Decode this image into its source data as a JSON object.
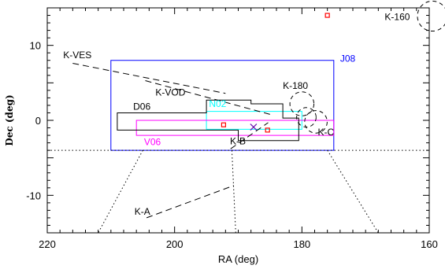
{
  "chart_data": {
    "type": "scatter",
    "title": "",
    "xlabel": "RA (deg)",
    "ylabel": "Dec (deg)",
    "xlim": [
      220,
      160
    ],
    "ylim": [
      -15,
      15
    ],
    "x_ticks": [
      220,
      200,
      180,
      160
    ],
    "x_tick_labels": [
      "220",
      "200",
      "180",
      "160"
    ],
    "y_ticks": [
      10,
      0,
      -10
    ],
    "y_tick_labels": [
      "10",
      "0",
      "-10"
    ],
    "grid": false,
    "colors": {
      "axes": "#000000",
      "j08": "#0000ff",
      "n02": "#00ffff",
      "v06": "#ff00ff",
      "d06": "#000000",
      "markers": "#ff0000",
      "cross": "#6a0dad"
    },
    "regions": [
      {
        "label": "J08",
        "color": "#0000ff",
        "style": "solid",
        "polygon": [
          [
            210,
            -4
          ],
          [
            175,
            -4
          ],
          [
            175,
            8
          ],
          [
            210,
            8
          ]
        ]
      },
      {
        "label": "N02",
        "color": "#00ffff",
        "style": "solid",
        "polygon": [
          [
            195,
            -1.2
          ],
          [
            180,
            -1.2
          ],
          [
            180,
            1.2
          ],
          [
            195,
            1.2
          ]
        ]
      },
      {
        "label": "V06",
        "color": "#ff00ff",
        "style": "solid",
        "polygon": [
          [
            206,
            -2
          ],
          [
            175,
            -2
          ],
          [
            175,
            0
          ],
          [
            206,
            0
          ]
        ]
      },
      {
        "label": "D06",
        "color": "#000000",
        "style": "solid",
        "polygon": [
          [
            209,
            -1.3
          ],
          [
            190,
            -1.3
          ],
          [
            190,
            -2.7
          ],
          [
            180.5,
            -2.7
          ],
          [
            180.5,
            0.3
          ],
          [
            183,
            0.3
          ],
          [
            183,
            2.2
          ],
          [
            188,
            2.2
          ],
          [
            188,
            2.7
          ],
          [
            195,
            2.7
          ],
          [
            195,
            1
          ],
          [
            209,
            1
          ]
        ]
      }
    ],
    "lines": [
      {
        "label": "K-VES",
        "style": "dashed",
        "color": "#000000",
        "points": [
          [
            216,
            7.6
          ],
          [
            192,
            3.6
          ]
        ]
      },
      {
        "label": "K-VOD",
        "style": "dashed",
        "color": "#000000",
        "points": [
          [
            204.6,
            5.3
          ],
          [
            185,
            0.8
          ]
        ]
      },
      {
        "label": "K-B",
        "style": "dashed",
        "color": "#000000",
        "points": [
          [
            191.2,
            -3.8
          ],
          [
            185.3,
            -0.3
          ]
        ]
      },
      {
        "label": "K-A",
        "style": "dashed",
        "color": "#000000",
        "points": [
          [
            204.4,
            -13
          ],
          [
            190.7,
            -8.7
          ]
        ]
      },
      {
        "label": "Galactic latitude boundary",
        "style": "dotted",
        "color": "#000000",
        "points": [
          [
            220,
            -4
          ],
          [
            160,
            -4
          ]
        ]
      },
      {
        "label": "",
        "style": "dotted",
        "color": "#000000",
        "points": [
          [
            205,
            -4
          ],
          [
            212,
            -15
          ]
        ]
      },
      {
        "label": "",
        "style": "dotted",
        "color": "#000000",
        "points": [
          [
            191,
            -4
          ],
          [
            190.4,
            -15
          ]
        ]
      },
      {
        "label": "",
        "style": "dotted",
        "color": "#000000",
        "points": [
          [
            176,
            -4
          ],
          [
            168,
            -15
          ]
        ]
      }
    ],
    "circles": [
      {
        "label": "K-160",
        "center": [
          159.5,
          13.9
        ],
        "radius": 2,
        "style": "dashed"
      },
      {
        "label": "K-180",
        "center": [
          180,
          2.2
        ],
        "radius": 1.6,
        "style": "dashed"
      },
      {
        "label": "",
        "center": [
          179.3,
          0.4
        ],
        "radius": 1.3,
        "style": "dashed"
      },
      {
        "label": "K-C",
        "center": [
          177.8,
          -0.2
        ],
        "radius": 1.5,
        "style": "dashed"
      }
    ],
    "markers": [
      {
        "symbol": "square",
        "color": "#ff0000",
        "x": [
          176,
          192.3,
          185.4
        ],
        "y": [
          14,
          -0.6,
          -1.3
        ]
      },
      {
        "symbol": "cross",
        "color": "#6a0dad",
        "x": [
          187.6
        ],
        "y": [
          -0.9
        ]
      }
    ],
    "labels": [
      {
        "text": "J08",
        "x": 174,
        "y": 7.8,
        "color": "#0000ff"
      },
      {
        "text": "N02",
        "x": 194.6,
        "y": 1.8,
        "color": "#00ffff"
      },
      {
        "text": "V06",
        "x": 204.8,
        "y": -3.3,
        "color": "#ff00ff"
      },
      {
        "text": "D06",
        "x": 206.5,
        "y": 1.4,
        "color": "#000000"
      },
      {
        "text": "K-VES",
        "x": 217.5,
        "y": 8.3,
        "color": "#000000"
      },
      {
        "text": "K-VOD",
        "x": 203,
        "y": 3.3,
        "color": "#000000"
      },
      {
        "text": "K-B",
        "x": 191.3,
        "y": -3.2,
        "color": "#000000"
      },
      {
        "text": "K-A",
        "x": 206.3,
        "y": -12.6,
        "color": "#000000"
      },
      {
        "text": "K-180",
        "x": 183,
        "y": 4.2,
        "color": "#000000"
      },
      {
        "text": "K-C",
        "x": 177.5,
        "y": -2,
        "color": "#000000"
      },
      {
        "text": "K-160",
        "x": 167,
        "y": 13.4,
        "color": "#000000"
      }
    ]
  }
}
